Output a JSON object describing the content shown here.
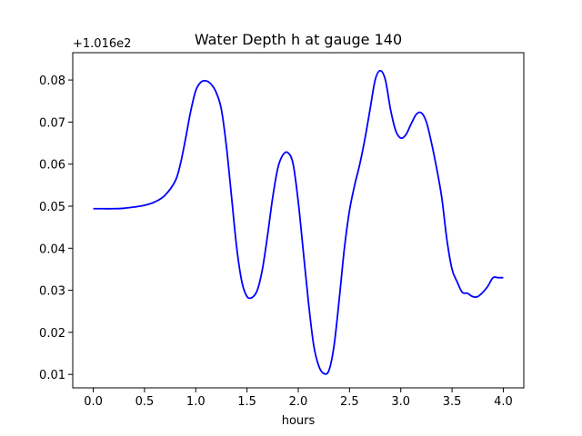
{
  "chart_data": {
    "type": "line",
    "title": "Water Depth h at gauge 140",
    "xlabel": "hours",
    "ylabel": "",
    "y_offset_label": "+1.016e2",
    "xlim": [
      -0.2,
      4.2
    ],
    "ylim": [
      0.0068,
      0.0865
    ],
    "x_ticks": [
      0.0,
      0.5,
      1.0,
      1.5,
      2.0,
      2.5,
      3.0,
      3.5,
      4.0
    ],
    "x_tick_labels": [
      "0.0",
      "0.5",
      "1.0",
      "1.5",
      "2.0",
      "2.5",
      "3.0",
      "3.5",
      "4.0"
    ],
    "y_ticks": [
      0.01,
      0.02,
      0.03,
      0.04,
      0.05,
      0.06,
      0.07,
      0.08
    ],
    "y_tick_labels": [
      "0.01",
      "0.02",
      "0.03",
      "0.04",
      "0.05",
      "0.06",
      "0.07",
      "0.08"
    ],
    "grid": false,
    "series": [
      {
        "color": "#0000ff",
        "x": [
          0.0,
          0.1,
          0.2,
          0.3,
          0.4,
          0.5,
          0.6,
          0.7,
          0.8,
          0.85,
          0.9,
          0.95,
          1.0,
          1.05,
          1.1,
          1.15,
          1.2,
          1.25,
          1.3,
          1.35,
          1.4,
          1.45,
          1.5,
          1.55,
          1.6,
          1.65,
          1.7,
          1.75,
          1.8,
          1.85,
          1.9,
          1.95,
          2.0,
          2.05,
          2.1,
          2.15,
          2.2,
          2.25,
          2.3,
          2.35,
          2.4,
          2.45,
          2.5,
          2.55,
          2.6,
          2.65,
          2.7,
          2.75,
          2.8,
          2.85,
          2.9,
          2.95,
          3.0,
          3.05,
          3.1,
          3.15,
          3.2,
          3.25,
          3.3,
          3.35,
          3.4,
          3.45,
          3.5,
          3.55,
          3.6,
          3.65,
          3.7,
          3.75,
          3.8,
          3.85,
          3.9,
          3.95,
          4.0
        ],
        "y": [
          0.0494,
          0.0494,
          0.0494,
          0.0495,
          0.0498,
          0.0502,
          0.051,
          0.0526,
          0.056,
          0.06,
          0.066,
          0.0725,
          0.0775,
          0.0795,
          0.0798,
          0.079,
          0.077,
          0.073,
          0.064,
          0.052,
          0.04,
          0.032,
          0.0285,
          0.0283,
          0.03,
          0.035,
          0.043,
          0.052,
          0.059,
          0.0622,
          0.0627,
          0.06,
          0.051,
          0.039,
          0.027,
          0.017,
          0.012,
          0.0102,
          0.011,
          0.017,
          0.028,
          0.04,
          0.049,
          0.055,
          0.06,
          0.066,
          0.073,
          0.08,
          0.0822,
          0.08,
          0.073,
          0.068,
          0.0662,
          0.067,
          0.0695,
          0.0718,
          0.0722,
          0.07,
          0.065,
          0.059,
          0.052,
          0.042,
          0.035,
          0.032,
          0.0295,
          0.0293,
          0.0285,
          0.0285,
          0.0295,
          0.031,
          0.033,
          0.033,
          0.033
        ]
      }
    ]
  }
}
